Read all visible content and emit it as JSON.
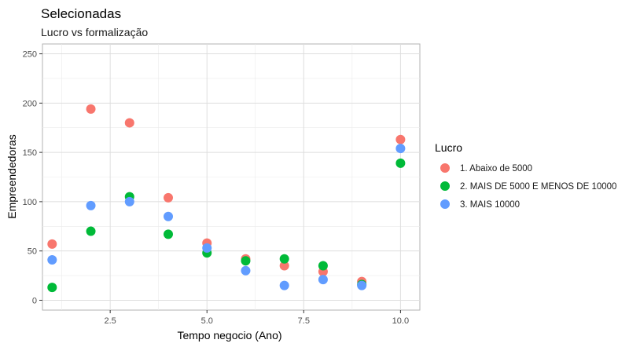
{
  "chart_data": {
    "type": "scatter",
    "title": "Selecionadas",
    "subtitle": "Lucro vs formalização",
    "xlabel": "Tempo negocio (Ano)",
    "ylabel": "Empreendedoras",
    "xlim": [
      0.75,
      10.5
    ],
    "ylim": [
      -10,
      260
    ],
    "x_ticks": [
      2.5,
      5.0,
      7.5,
      10.0
    ],
    "x_tick_labels": [
      "2.5",
      "5.0",
      "7.5",
      "10.0"
    ],
    "y_ticks": [
      0,
      50,
      100,
      150,
      200,
      250
    ],
    "y_tick_labels": [
      "0",
      "50",
      "100",
      "150",
      "200",
      "250"
    ],
    "grid": true,
    "legend_title": "Lucro",
    "legend_position": "right",
    "series": [
      {
        "name": "1. Abaixo de 5000",
        "color": "#F8766D",
        "x": [
          1,
          2,
          3,
          4,
          5,
          6,
          7,
          8,
          9,
          10
        ],
        "y": [
          57,
          194,
          180,
          104,
          58,
          42,
          35,
          29,
          19,
          163
        ]
      },
      {
        "name": "2. MAIS DE 5000 E MENOS DE 10000",
        "color": "#00BA38",
        "x": [
          1,
          2,
          3,
          4,
          5,
          6,
          7,
          8,
          9,
          10
        ],
        "y": [
          13,
          70,
          105,
          67,
          48,
          40,
          42,
          35,
          16,
          139
        ]
      },
      {
        "name": "3. MAIS 10000",
        "color": "#619CFF",
        "x": [
          1,
          2,
          3,
          4,
          5,
          6,
          7,
          8,
          9,
          10
        ],
        "y": [
          41,
          96,
          100,
          85,
          53,
          30,
          15,
          21,
          15,
          154
        ]
      }
    ]
  }
}
